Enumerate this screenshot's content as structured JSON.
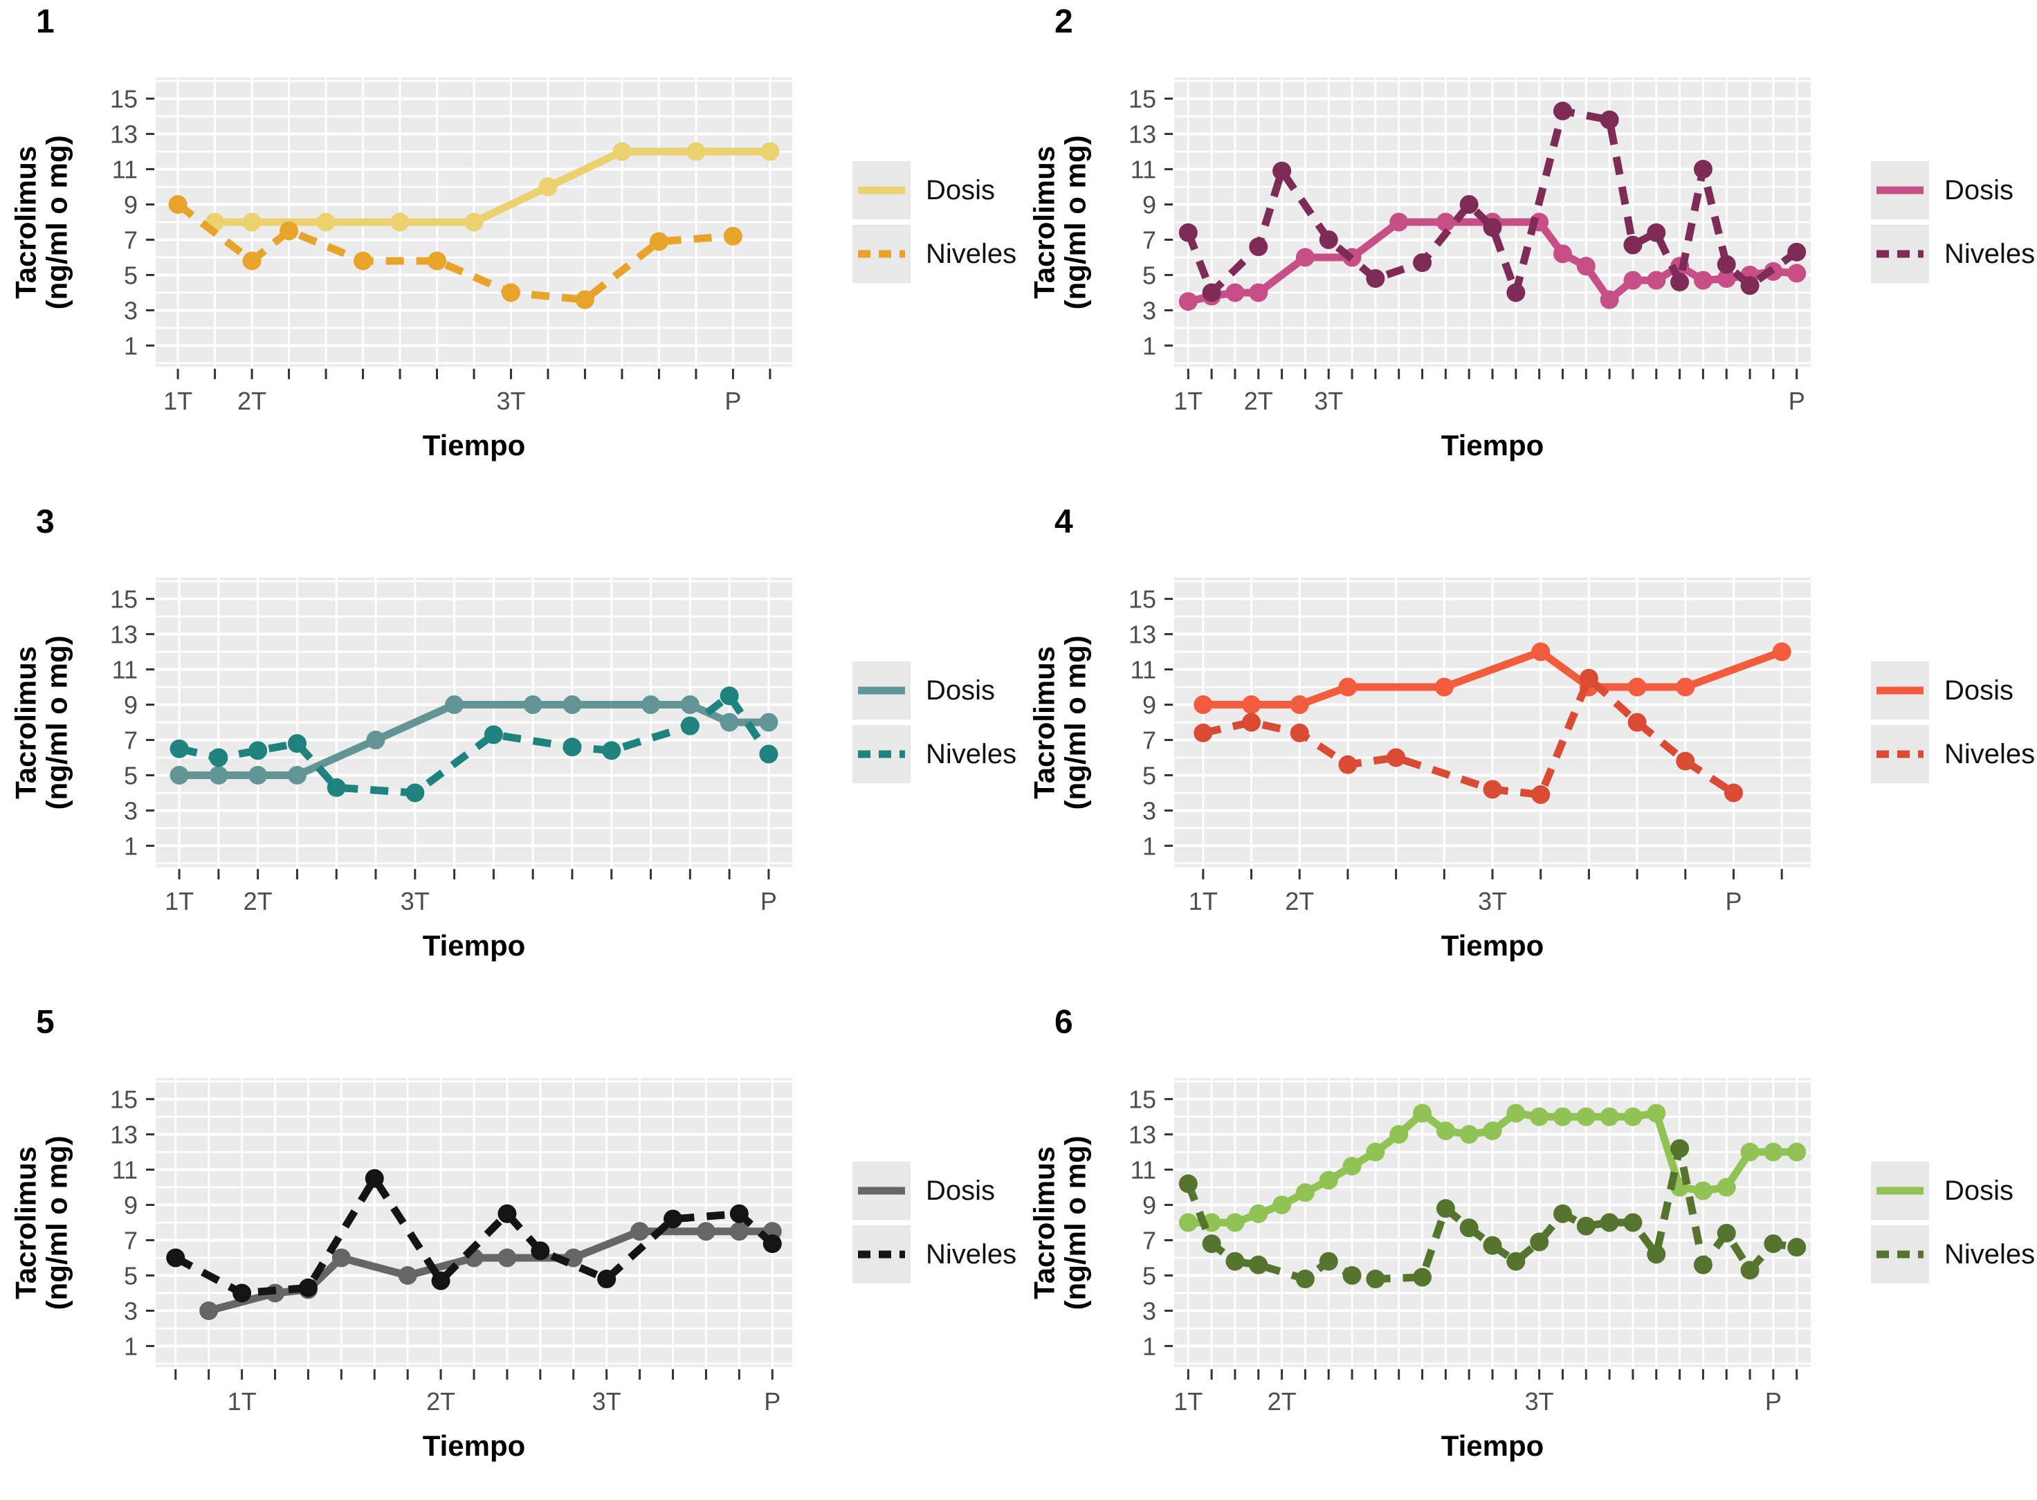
{
  "y_axis": {
    "title_line1": "Tacrolimus",
    "title_line2": "(ng/ml o mg)",
    "ticks": [
      1,
      3,
      5,
      7,
      9,
      11,
      13,
      15
    ]
  },
  "x_axis": {
    "title": "Tiempo"
  },
  "legend": {
    "dosis_label": "Dosis",
    "niveles_label": "Niveles"
  },
  "chart_data": [
    {
      "type": "line",
      "number": "1",
      "n_ticks": 17,
      "ylim": [
        -0.2,
        16.2
      ],
      "x_labels": {
        "1": "1T",
        "3": "2T",
        "10": "3T",
        "16": "P"
      },
      "series": [
        {
          "name": "Dosis",
          "style": "solid",
          "color": "#EBD26E",
          "points": [
            [
              2,
              8
            ],
            [
              3,
              8
            ],
            [
              5,
              8
            ],
            [
              7,
              8
            ],
            [
              9,
              8
            ],
            [
              11,
              10
            ],
            [
              13,
              12
            ],
            [
              15,
              12
            ],
            [
              17,
              12
            ]
          ]
        },
        {
          "name": "Niveles",
          "style": "dashed",
          "color": "#E8A32A",
          "points": [
            [
              1,
              9
            ],
            [
              3,
              5.8
            ],
            [
              4,
              7.5
            ],
            [
              6,
              5.8
            ],
            [
              8,
              5.8
            ],
            [
              10,
              4
            ],
            [
              12,
              3.6
            ],
            [
              14,
              6.9
            ],
            [
              16,
              7.2
            ]
          ]
        }
      ]
    },
    {
      "type": "line",
      "number": "2",
      "n_ticks": 27,
      "ylim": [
        -0.2,
        16.2
      ],
      "x_labels": {
        "1": "1T",
        "4": "2T",
        "7": "3T",
        "27": "P"
      },
      "series": [
        {
          "name": "Dosis",
          "style": "solid",
          "color": "#C74F87",
          "points": [
            [
              1,
              3.5
            ],
            [
              2,
              3.8
            ],
            [
              3,
              4
            ],
            [
              4,
              4
            ],
            [
              6,
              6
            ],
            [
              8,
              6
            ],
            [
              10,
              8
            ],
            [
              12,
              8
            ],
            [
              14,
              8
            ],
            [
              16,
              8
            ],
            [
              17,
              6.2
            ],
            [
              18,
              5.5
            ],
            [
              19,
              3.6
            ],
            [
              20,
              4.7
            ],
            [
              21,
              4.7
            ],
            [
              22,
              5.5
            ],
            [
              23,
              4.7
            ],
            [
              24,
              4.8
            ],
            [
              25,
              5
            ],
            [
              26,
              5.2
            ],
            [
              27,
              5.1
            ]
          ]
        },
        {
          "name": "Niveles",
          "style": "dashed",
          "color": "#7E2C57",
          "points": [
            [
              1,
              7.4
            ],
            [
              2,
              4
            ],
            [
              4,
              6.6
            ],
            [
              5,
              10.9
            ],
            [
              7,
              7
            ],
            [
              9,
              4.8
            ],
            [
              11,
              5.7
            ],
            [
              13,
              9
            ],
            [
              14,
              7.7
            ],
            [
              15,
              4
            ],
            [
              17,
              14.3
            ],
            [
              19,
              13.8
            ],
            [
              20,
              6.7
            ],
            [
              21,
              7.4
            ],
            [
              22,
              4.6
            ],
            [
              23,
              11
            ],
            [
              24,
              5.6
            ],
            [
              25,
              4.4
            ],
            [
              27,
              6.3
            ]
          ]
        }
      ]
    },
    {
      "type": "line",
      "number": "3",
      "n_ticks": 16,
      "ylim": [
        -0.2,
        16.2
      ],
      "x_labels": {
        "1": "1T",
        "3": "2T",
        "7": "3T",
        "16": "P"
      },
      "series": [
        {
          "name": "Dosis",
          "style": "solid",
          "color": "#629596",
          "points": [
            [
              1,
              5
            ],
            [
              2,
              5
            ],
            [
              3,
              5
            ],
            [
              4,
              5
            ],
            [
              6,
              7
            ],
            [
              8,
              9
            ],
            [
              10,
              9
            ],
            [
              11,
              9
            ],
            [
              13,
              9
            ],
            [
              14,
              9
            ],
            [
              15,
              8
            ],
            [
              16,
              8
            ]
          ]
        },
        {
          "name": "Niveles",
          "style": "dashed",
          "color": "#1E827E",
          "points": [
            [
              1,
              6.5
            ],
            [
              2,
              6
            ],
            [
              3,
              6.4
            ],
            [
              4,
              6.8
            ],
            [
              5,
              4.3
            ],
            [
              7,
              4
            ],
            [
              9,
              7.3
            ],
            [
              11,
              6.6
            ],
            [
              12,
              6.4
            ],
            [
              14,
              7.8
            ],
            [
              15,
              9.5
            ],
            [
              16,
              6.2
            ]
          ]
        }
      ]
    },
    {
      "type": "line",
      "number": "4",
      "n_ticks": 13,
      "ylim": [
        -0.2,
        16.2
      ],
      "x_labels": {
        "1": "1T",
        "3": "2T",
        "7": "3T",
        "12": "P"
      },
      "series": [
        {
          "name": "Dosis",
          "style": "solid",
          "color": "#F25C3D",
          "points": [
            [
              1,
              9
            ],
            [
              2,
              9
            ],
            [
              3,
              9
            ],
            [
              4,
              10
            ],
            [
              6,
              10
            ],
            [
              8,
              12
            ],
            [
              9,
              10
            ],
            [
              10,
              10
            ],
            [
              11,
              10
            ],
            [
              13,
              12
            ]
          ]
        },
        {
          "name": "Niveles",
          "style": "dashed",
          "color": "#D94B33",
          "points": [
            [
              1,
              7.4
            ],
            [
              2,
              8
            ],
            [
              3,
              7.4
            ],
            [
              4,
              5.6
            ],
            [
              5,
              6
            ],
            [
              7,
              4.2
            ],
            [
              8,
              3.9
            ],
            [
              9,
              10.5
            ],
            [
              10,
              8
            ],
            [
              11,
              5.8
            ],
            [
              12,
              4
            ]
          ]
        }
      ]
    },
    {
      "type": "line",
      "number": "5",
      "n_ticks": 19,
      "ylim": [
        -0.2,
        16.2
      ],
      "x_labels": {
        "3": "1T",
        "9": "2T",
        "14": "3T",
        "19": "P"
      },
      "series": [
        {
          "name": "Dosis",
          "style": "solid",
          "color": "#666666",
          "points": [
            [
              2,
              3
            ],
            [
              4,
              4
            ],
            [
              5,
              4.2
            ],
            [
              6,
              6
            ],
            [
              8,
              5
            ],
            [
              10,
              6
            ],
            [
              11,
              6
            ],
            [
              13,
              6
            ],
            [
              15,
              7.5
            ],
            [
              17,
              7.5
            ],
            [
              18,
              7.5
            ],
            [
              19,
              7.5
            ]
          ]
        },
        {
          "name": "Niveles",
          "style": "dashed",
          "color": "#141414",
          "points": [
            [
              1,
              6
            ],
            [
              3,
              4
            ],
            [
              5,
              4.3
            ],
            [
              7,
              10.5
            ],
            [
              9,
              4.7
            ],
            [
              11,
              8.5
            ],
            [
              12,
              6.4
            ],
            [
              14,
              4.8
            ],
            [
              16,
              8.2
            ],
            [
              18,
              8.5
            ],
            [
              19,
              6.8
            ]
          ]
        }
      ]
    },
    {
      "type": "line",
      "number": "6",
      "n_ticks": 27,
      "ylim": [
        -0.2,
        16.2
      ],
      "x_labels": {
        "1": "1T",
        "5": "2T",
        "16": "3T",
        "26": "P"
      },
      "series": [
        {
          "name": "Dosis",
          "style": "solid",
          "color": "#90C354",
          "points": [
            [
              1,
              8
            ],
            [
              2,
              8
            ],
            [
              3,
              8
            ],
            [
              4,
              8.5
            ],
            [
              5,
              9
            ],
            [
              6,
              9.7
            ],
            [
              7,
              10.4
            ],
            [
              8,
              11.2
            ],
            [
              9,
              12
            ],
            [
              10,
              13
            ],
            [
              11,
              14.2
            ],
            [
              12,
              13.2
            ],
            [
              13,
              13
            ],
            [
              14,
              13.2
            ],
            [
              15,
              14.2
            ],
            [
              16,
              14
            ],
            [
              17,
              14
            ],
            [
              18,
              14
            ],
            [
              19,
              14
            ],
            [
              20,
              14
            ],
            [
              21,
              14.2
            ],
            [
              22,
              10
            ],
            [
              23,
              9.8
            ],
            [
              24,
              10
            ],
            [
              25,
              12
            ],
            [
              26,
              12
            ],
            [
              27,
              12
            ]
          ]
        },
        {
          "name": "Niveles",
          "style": "dashed",
          "color": "#55752F",
          "points": [
            [
              1,
              10.2
            ],
            [
              2,
              6.8
            ],
            [
              3,
              5.8
            ],
            [
              4,
              5.6
            ],
            [
              6,
              4.8
            ],
            [
              7,
              5.8
            ],
            [
              8,
              5
            ],
            [
              9,
              4.8
            ],
            [
              11,
              4.9
            ],
            [
              12,
              8.8
            ],
            [
              13,
              7.7
            ],
            [
              14,
              6.7
            ],
            [
              15,
              5.8
            ],
            [
              16,
              6.9
            ],
            [
              17,
              8.5
            ],
            [
              18,
              7.8
            ],
            [
              19,
              8
            ],
            [
              20,
              8
            ],
            [
              21,
              6.2
            ],
            [
              22,
              12.2
            ],
            [
              23,
              5.6
            ],
            [
              24,
              7.4
            ],
            [
              25,
              5.3
            ],
            [
              26,
              6.8
            ],
            [
              27,
              6.6
            ]
          ]
        }
      ]
    }
  ]
}
